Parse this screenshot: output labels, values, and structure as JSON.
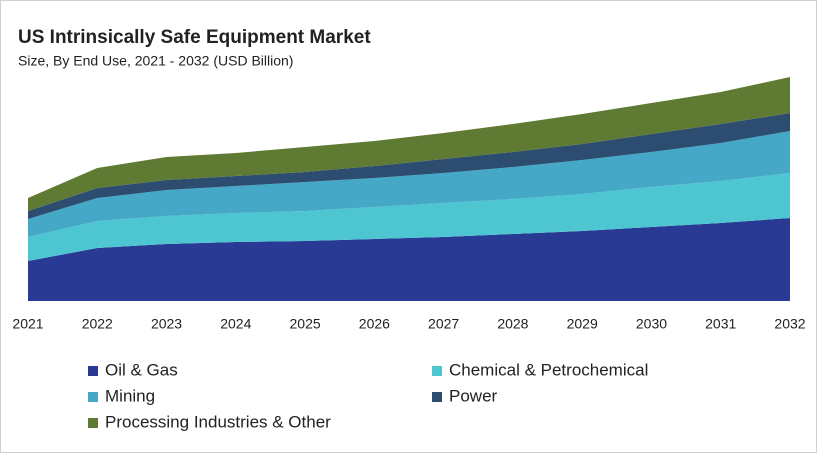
{
  "chart_data": {
    "type": "stacked-area",
    "title": "US Intrinsically Safe Equipment Market",
    "subtitle": "Size, By End Use, 2021 - 2032 (USD Billion)",
    "categories": [
      "2021",
      "2022",
      "2023",
      "2024",
      "2025",
      "2026",
      "2027",
      "2028",
      "2029",
      "2030",
      "2031",
      "2032"
    ],
    "ylim": [
      0,
      24
    ],
    "series": [
      {
        "name": "Oil & Gas",
        "color": "#283a93",
        "values": [
          4.0,
          5.3,
          5.7,
          5.9,
          6.0,
          6.2,
          6.4,
          6.7,
          7.0,
          7.4,
          7.8,
          8.3
        ]
      },
      {
        "name": "Chemical & Petrochemical",
        "color": "#4dc6d2",
        "values": [
          2.4,
          2.7,
          2.8,
          2.9,
          3.0,
          3.2,
          3.4,
          3.5,
          3.7,
          4.0,
          4.2,
          4.5
        ]
      },
      {
        "name": "Mining",
        "color": "#45a8c6",
        "values": [
          1.8,
          2.3,
          2.6,
          2.7,
          2.9,
          2.9,
          3.0,
          3.2,
          3.4,
          3.5,
          3.8,
          4.2
        ]
      },
      {
        "name": "Power",
        "color": "#2c4d6f",
        "values": [
          0.8,
          1.0,
          1.0,
          1.0,
          1.0,
          1.2,
          1.4,
          1.5,
          1.6,
          1.8,
          1.9,
          1.8
        ]
      },
      {
        "name": "Processing Industries & Other",
        "color": "#5e7a33",
        "values": [
          1.3,
          2.0,
          2.3,
          2.3,
          2.5,
          2.5,
          2.6,
          2.8,
          3.0,
          3.1,
          3.2,
          3.6
        ]
      }
    ]
  }
}
